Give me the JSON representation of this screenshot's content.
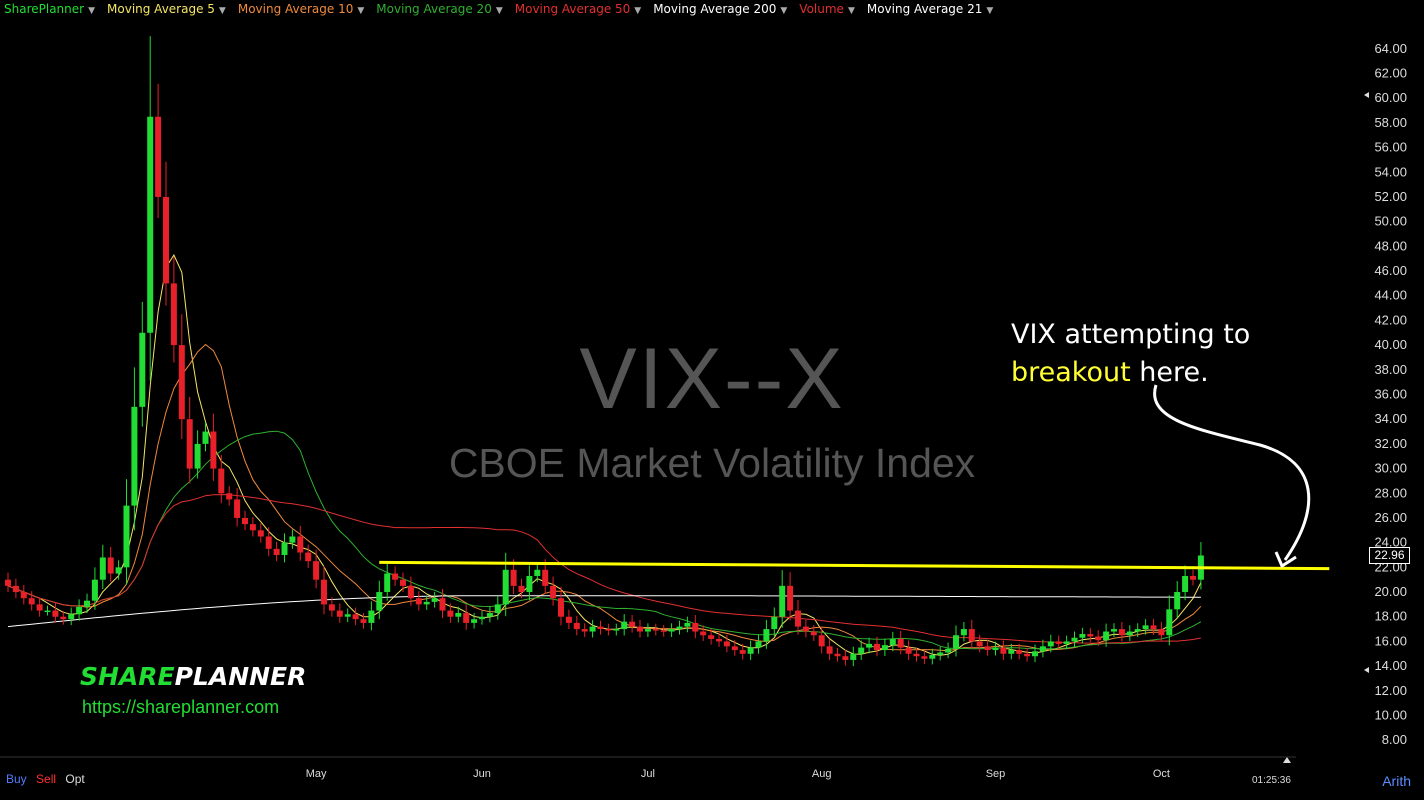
{
  "legend": [
    {
      "label": "SharePlanner",
      "color": "#22dd33"
    },
    {
      "label": "Moving Average 5",
      "color": "#f5e663"
    },
    {
      "label": "Moving Average 10",
      "color": "#f08a3c"
    },
    {
      "label": "Moving Average 20",
      "color": "#2fb02f"
    },
    {
      "label": "Moving Average 50",
      "color": "#e23030"
    },
    {
      "label": "Moving Average 200",
      "color": "#ffffff"
    },
    {
      "label": "Volume",
      "color": "#e23030"
    },
    {
      "label": "Moving Average 21",
      "color": "#ffffff"
    }
  ],
  "watermark": {
    "ticker": "VIX--X",
    "name": "CBOE Market Volatility Index"
  },
  "annotation": {
    "line1": "VIX attempting to",
    "highlight": "breakout",
    "line2_rest": " here."
  },
  "brand": {
    "part1": "SHARE",
    "part2": "PLANNER",
    "url": "https://shareplanner.com"
  },
  "toolbar": {
    "buy": "Buy",
    "sell": "Sell",
    "opt": "Opt",
    "scale": "Arith",
    "time": "01:25:36"
  },
  "last_price": "22.96",
  "colors": {
    "up": "#22dd33",
    "down": "#e8202a",
    "breakout_line": "#ffff00",
    "axis_text": "#dddddd"
  },
  "chart_data": {
    "type": "candlestick",
    "title": "VIX--X",
    "subtitle": "CBOE Market Volatility Index",
    "y_ticks": [
      "8.00",
      "10.00",
      "12.00",
      "14.00",
      "16.00",
      "18.00",
      "20.00",
      "22.00",
      "24.00",
      "26.00",
      "28.00",
      "30.00",
      "32.00",
      "34.00",
      "36.00",
      "38.00",
      "40.00",
      "42.00",
      "44.00",
      "46.00",
      "48.00",
      "50.00",
      "52.00",
      "54.00",
      "56.00",
      "58.00",
      "60.00",
      "62.00",
      "64.00"
    ],
    "ylim": [
      6.8,
      65.2
    ],
    "x_labels": [
      {
        "label": "May",
        "index": 39
      },
      {
        "label": "Jun",
        "index": 60
      },
      {
        "label": "Jul",
        "index": 81
      },
      {
        "label": "Aug",
        "index": 103
      },
      {
        "label": "Sep",
        "index": 125
      },
      {
        "label": "Oct",
        "index": 146
      }
    ],
    "breakout_line": {
      "from_index": 47,
      "to_index": 167,
      "start": 22.4,
      "end": 21.9
    },
    "close": [
      20.5,
      20.0,
      19.5,
      19.0,
      18.5,
      18.5,
      18.0,
      17.8,
      18.2,
      18.8,
      19.3,
      21.0,
      22.8,
      21.5,
      22.0,
      27.0,
      35.0,
      41.0,
      58.5,
      52.0,
      45.0,
      40.0,
      34.0,
      30.0,
      32.0,
      33.0,
      30.0,
      28.0,
      27.5,
      26.0,
      25.5,
      25.0,
      24.5,
      23.5,
      23.0,
      24.0,
      24.5,
      23.2,
      22.5,
      21.0,
      19.0,
      18.5,
      18.0,
      18.2,
      17.8,
      17.5,
      18.5,
      20.0,
      21.5,
      21.0,
      20.5,
      19.5,
      19.0,
      19.2,
      19.5,
      18.5,
      18.0,
      18.3,
      17.5,
      17.8,
      18.0,
      18.3,
      19.0,
      21.8,
      20.5,
      20.0,
      21.3,
      21.8,
      20.5,
      19.5,
      18.0,
      17.5,
      17.0,
      16.8,
      17.2,
      17.0,
      16.9,
      17.0,
      17.6,
      17.2,
      16.8,
      17.0,
      16.9,
      16.8,
      17.0,
      17.2,
      17.5,
      16.8,
      16.5,
      16.2,
      16.0,
      15.6,
      15.3,
      15.0,
      15.5,
      16.0,
      17.0,
      18.0,
      20.5,
      18.5,
      17.2,
      16.8,
      16.5,
      15.6,
      15.0,
      14.8,
      14.5,
      15.0,
      15.5,
      15.8,
      15.3,
      15.7,
      16.2,
      15.5,
      15.0,
      14.8,
      14.6,
      14.9,
      15.1,
      15.4,
      16.5,
      17.0,
      16.0,
      15.6,
      15.3,
      15.5,
      15.0,
      15.3,
      15.0,
      14.8,
      15.2,
      15.6,
      16.0,
      15.8,
      16.0,
      16.3,
      16.6,
      16.4,
      16.1,
      16.8,
      17.0,
      16.5,
      16.8,
      17.0,
      17.3,
      17.0,
      16.5,
      18.6,
      20.0,
      21.3,
      21.0,
      22.96
    ]
  }
}
